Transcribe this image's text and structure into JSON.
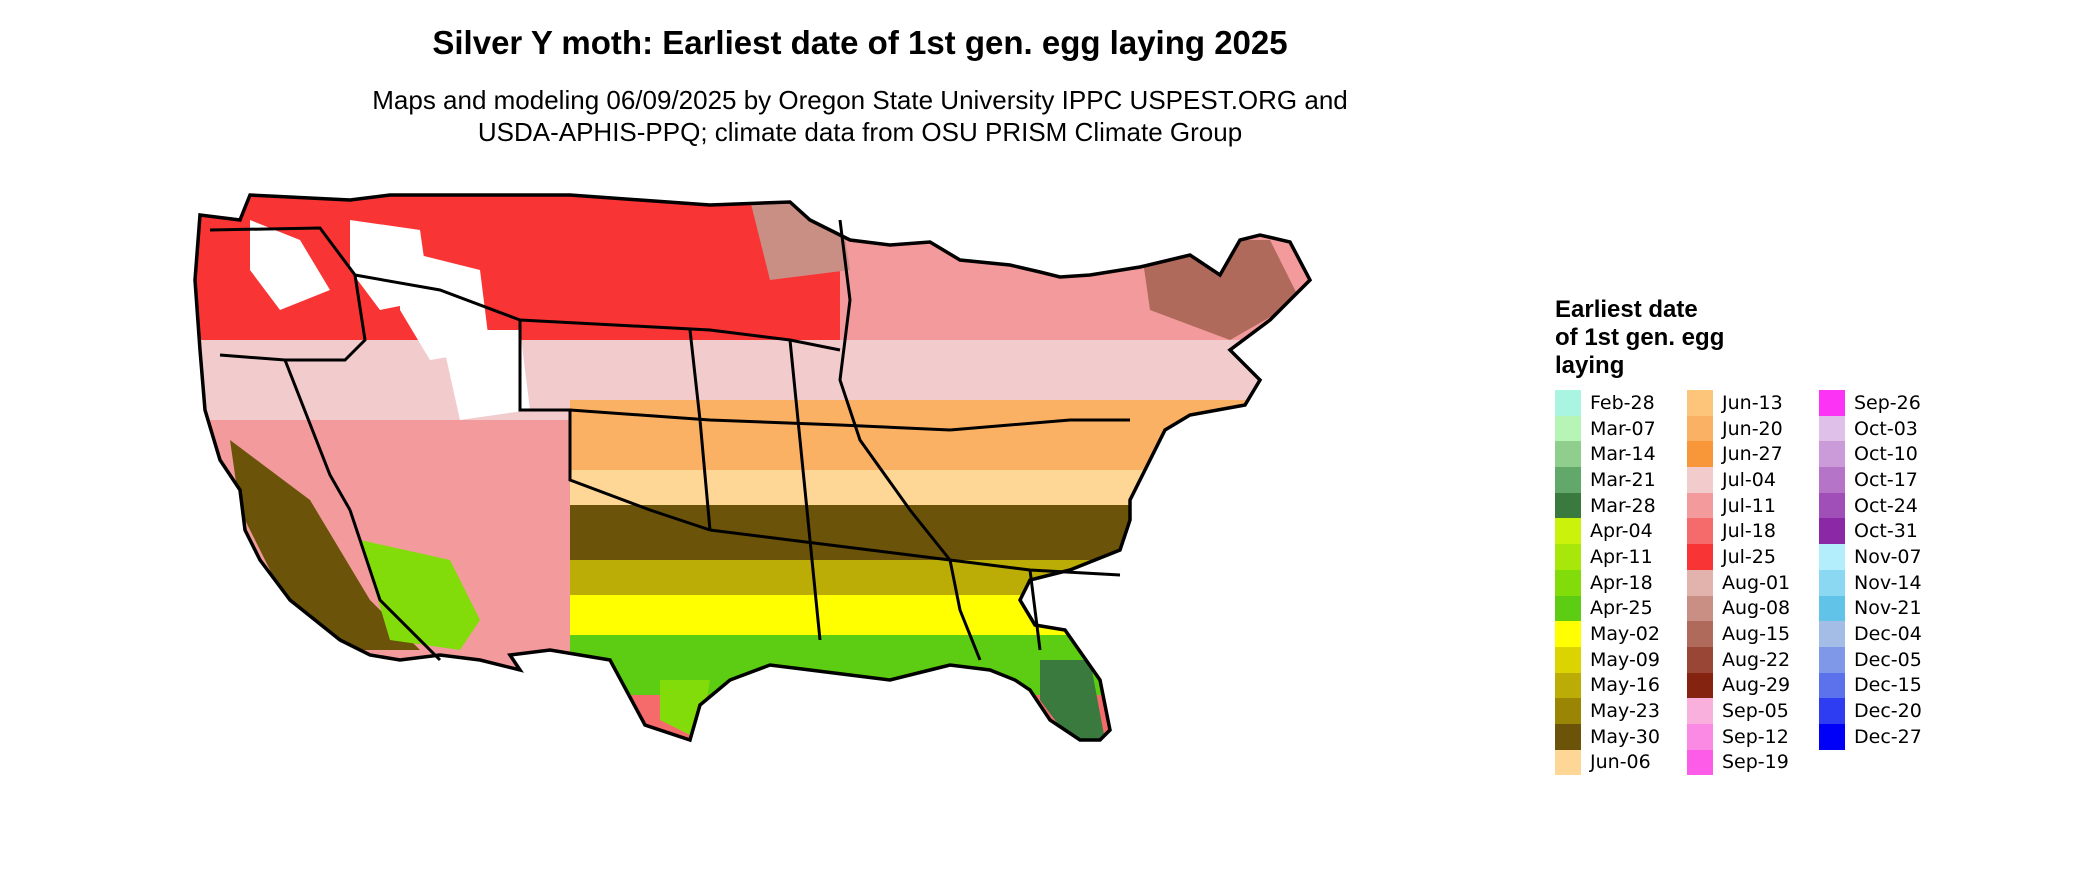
{
  "title": "Silver Y moth: Earliest date of 1st gen. egg laying 2025",
  "subtitle_lines": [
    "Maps and modeling 06/09/2025 by Oregon State University IPPC USPEST.ORG and",
    "USDA-APHIS-PPQ; climate data from OSU PRISM Climate Group"
  ],
  "legend": {
    "title_lines": [
      "Earliest date",
      "of 1st gen. egg",
      "laying"
    ],
    "columns": [
      [
        {
          "label": "Feb-28",
          "color": "#aaf5e1"
        },
        {
          "label": "Mar-07",
          "color": "#b7f5b7"
        },
        {
          "label": "Mar-14",
          "color": "#8fce8c"
        },
        {
          "label": "Mar-21",
          "color": "#62a86a"
        },
        {
          "label": "Mar-28",
          "color": "#3a7a3e"
        },
        {
          "label": "Apr-04",
          "color": "#cbf20a"
        },
        {
          "label": "Apr-11",
          "color": "#a7e80a"
        },
        {
          "label": "Apr-18",
          "color": "#82dc0a"
        },
        {
          "label": "Apr-25",
          "color": "#5ccd12"
        },
        {
          "label": "May-02",
          "color": "#ffff00"
        },
        {
          "label": "May-09",
          "color": "#dcd400"
        },
        {
          "label": "May-16",
          "color": "#bbac06"
        },
        {
          "label": "May-23",
          "color": "#9a8604"
        },
        {
          "label": "May-30",
          "color": "#6b5409"
        },
        {
          "label": "Jun-06",
          "color": "#fed796"
        }
      ],
      [
        {
          "label": "Jun-13",
          "color": "#fcc57a"
        },
        {
          "label": "Jun-20",
          "color": "#fbb163"
        },
        {
          "label": "Jun-27",
          "color": "#f8963a"
        },
        {
          "label": "Jul-04",
          "color": "#f2cbcd"
        },
        {
          "label": "Jul-11",
          "color": "#f29a9c"
        },
        {
          "label": "Jul-18",
          "color": "#f56a6a"
        },
        {
          "label": "Jul-25",
          "color": "#f83434"
        },
        {
          "label": "Aug-01",
          "color": "#e2b3ad"
        },
        {
          "label": "Aug-08",
          "color": "#c98e84"
        },
        {
          "label": "Aug-15",
          "color": "#b06a5c"
        },
        {
          "label": "Aug-22",
          "color": "#9a4636"
        },
        {
          "label": "Aug-29",
          "color": "#832310"
        },
        {
          "label": "Sep-05",
          "color": "#f9b0dd"
        },
        {
          "label": "Sep-12",
          "color": "#fb8ae4"
        },
        {
          "label": "Sep-19",
          "color": "#fc5ce8"
        }
      ],
      [
        {
          "label": "Sep-26",
          "color": "#fc32f4"
        },
        {
          "label": "Oct-03",
          "color": "#dfc0e8"
        },
        {
          "label": "Oct-10",
          "color": "#cb9ad8"
        },
        {
          "label": "Oct-17",
          "color": "#b574c8"
        },
        {
          "label": "Oct-24",
          "color": "#a04fb8"
        },
        {
          "label": "Oct-31",
          "color": "#8a28a6"
        },
        {
          "label": "Nov-07",
          "color": "#b2eefc"
        },
        {
          "label": "Nov-14",
          "color": "#8ad8f2"
        },
        {
          "label": "Nov-21",
          "color": "#62c3e8"
        },
        {
          "label": "Dec-04",
          "color": "#a4bde6"
        },
        {
          "label": "Dec-05",
          "color": "#7f98e8"
        },
        {
          "label": "Dec-15",
          "color": "#5b72ec"
        },
        {
          "label": "Dec-20",
          "color": "#2e3cf2"
        },
        {
          "label": "Dec-27",
          "color": "#0000f8"
        }
      ]
    ]
  }
}
